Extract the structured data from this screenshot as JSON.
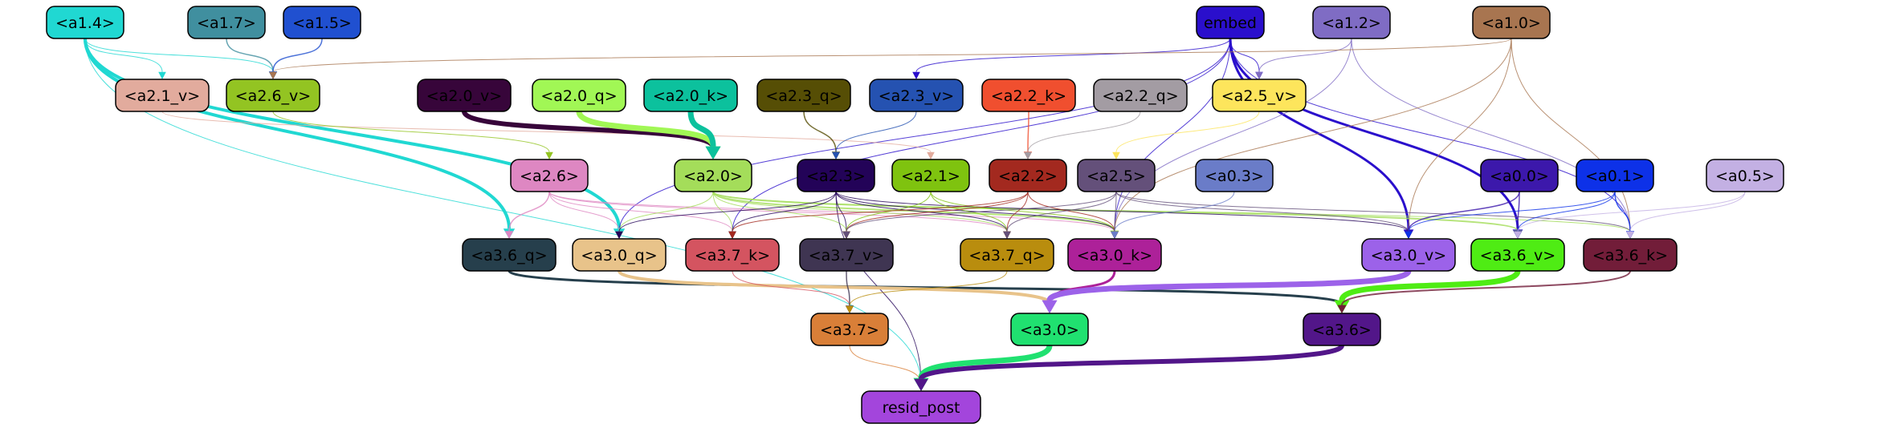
{
  "nodes": [
    {
      "id": "embed",
      "label": "embed",
      "fill": "#2a0fcc",
      "text": "#000000"
    },
    {
      "id": "a1.4",
      "label": "<a1.4>",
      "fill": "#20d8d2",
      "text": "#000000"
    },
    {
      "id": "a1.7",
      "label": "<a1.7>",
      "fill": "#408f9f",
      "text": "#000000"
    },
    {
      "id": "a1.5",
      "label": "<a1.5>",
      "fill": "#2050d0",
      "text": "#000000"
    },
    {
      "id": "a1.2",
      "label": "<a1.2>",
      "fill": "#7f6cc4",
      "text": "#000000"
    },
    {
      "id": "a1.0",
      "label": "<a1.0>",
      "fill": "#a87550",
      "text": "#000000"
    },
    {
      "id": "a2.1_v",
      "label": "<a2.1_v>",
      "fill": "#e2ab9d",
      "text": "#000000"
    },
    {
      "id": "a2.6_v",
      "label": "<a2.6_v>",
      "fill": "#93c422",
      "text": "#000000"
    },
    {
      "id": "a2.0_v",
      "label": "<a2.0_v>",
      "fill": "#37053a",
      "text": "#000000"
    },
    {
      "id": "a2.0_q",
      "label": "<a2.0_q>",
      "fill": "#a1f755",
      "text": "#000000"
    },
    {
      "id": "a2.0_k",
      "label": "<a2.0_k>",
      "fill": "#0cc19d",
      "text": "#000000"
    },
    {
      "id": "a2.3_q",
      "label": "<a2.3_q>",
      "fill": "#564e05",
      "text": "#000000"
    },
    {
      "id": "a2.3_v",
      "label": "<a2.3_v>",
      "fill": "#2552b1",
      "text": "#000000"
    },
    {
      "id": "a2.2_k",
      "label": "<a2.2_k>",
      "fill": "#f04f2f",
      "text": "#000000"
    },
    {
      "id": "a2.2_q",
      "label": "<a2.2_q>",
      "fill": "#a39ca3",
      "text": "#000000"
    },
    {
      "id": "a2.5_v",
      "label": "<a2.5_v>",
      "fill": "#fde55c",
      "text": "#000000"
    },
    {
      "id": "a2.6",
      "label": "<a2.6>",
      "fill": "#de87c2",
      "text": "#000000"
    },
    {
      "id": "a2.0",
      "label": "<a2.0>",
      "fill": "#a4dd5a",
      "text": "#000000"
    },
    {
      "id": "a2.3",
      "label": "<a2.3>",
      "fill": "#230358",
      "text": "#000000"
    },
    {
      "id": "a2.1",
      "label": "<a2.1>",
      "fill": "#7fc30f",
      "text": "#000000"
    },
    {
      "id": "a2.2",
      "label": "<a2.2>",
      "fill": "#a3291f",
      "text": "#000000"
    },
    {
      "id": "a2.5",
      "label": "<a2.5>",
      "fill": "#64507a",
      "text": "#000000"
    },
    {
      "id": "a0.3",
      "label": "<a0.3>",
      "fill": "#6a7cc8",
      "text": "#000000"
    },
    {
      "id": "a0.0",
      "label": "<a0.0>",
      "fill": "#3c18ab",
      "text": "#000000"
    },
    {
      "id": "a0.1",
      "label": "<a0.1>",
      "fill": "#0d31e8",
      "text": "#000000"
    },
    {
      "id": "a0.5",
      "label": "<a0.5>",
      "fill": "#c3b0e3",
      "text": "#000000"
    },
    {
      "id": "a3.6_q",
      "label": "<a3.6_q>",
      "fill": "#263f4c",
      "text": "#000000"
    },
    {
      "id": "a3.0_q",
      "label": "<a3.0_q>",
      "fill": "#e8c38a",
      "text": "#000000"
    },
    {
      "id": "a3.7_k",
      "label": "<a3.7_k>",
      "fill": "#d45460",
      "text": "#000000"
    },
    {
      "id": "a3.7_v",
      "label": "<a3.7_v>",
      "fill": "#3f3552",
      "text": "#000000"
    },
    {
      "id": "a3.7_q",
      "label": "<a3.7_q>",
      "fill": "#b98d0e",
      "text": "#000000"
    },
    {
      "id": "a3.0_k",
      "label": "<a3.0_k>",
      "fill": "#ad2199",
      "text": "#000000"
    },
    {
      "id": "a3.0_v",
      "label": "<a3.0_v>",
      "fill": "#9c62e9",
      "text": "#000000"
    },
    {
      "id": "a3.6_v",
      "label": "<a3.6_v>",
      "fill": "#4fec14",
      "text": "#000000"
    },
    {
      "id": "a3.6_k",
      "label": "<a3.6_k>",
      "fill": "#721d39",
      "text": "#000000"
    },
    {
      "id": "a3.7",
      "label": "<a3.7>",
      "fill": "#d97f38",
      "text": "#000000"
    },
    {
      "id": "a3.0",
      "label": "<a3.0>",
      "fill": "#20e170",
      "text": "#000000"
    },
    {
      "id": "a3.6",
      "label": "<a3.6>",
      "fill": "#521689",
      "text": "#000000"
    },
    {
      "id": "resid_post",
      "label": "resid_post",
      "fill": "#a345dc",
      "text": "#000000"
    }
  ],
  "edges": [
    {
      "from": "a1.4",
      "to": "a2.1_v",
      "color": "#20d8d2",
      "weight": 1
    },
    {
      "from": "a1.4",
      "to": "a2.6_v",
      "color": "#20d8d2",
      "weight": 1
    },
    {
      "from": "a1.4",
      "to": "a3.6_q",
      "color": "#20d8d2",
      "weight": 4
    },
    {
      "from": "a1.4",
      "to": "a3.0_q",
      "color": "#20d8d2",
      "weight": 4
    },
    {
      "from": "a1.4",
      "to": "resid_post",
      "color": "#20d8d2",
      "weight": 1
    },
    {
      "from": "a1.7",
      "to": "a2.6_v",
      "color": "#408f9f",
      "weight": 1.5
    },
    {
      "from": "a1.5",
      "to": "a2.6_v",
      "color": "#2050d0",
      "weight": 1.5
    },
    {
      "from": "embed",
      "to": "a2.3_v",
      "color": "#2a0fcc",
      "weight": 1
    },
    {
      "from": "embed",
      "to": "a2.5_v",
      "color": "#2a0fcc",
      "weight": 1
    },
    {
      "from": "embed",
      "to": "a3.0_v",
      "color": "#2a0fcc",
      "weight": 3
    },
    {
      "from": "embed",
      "to": "a3.6_v",
      "color": "#2a0fcc",
      "weight": 3
    },
    {
      "from": "embed",
      "to": "a3.6_k",
      "color": "#2a0fcc",
      "weight": 1
    },
    {
      "from": "embed",
      "to": "a3.0_k",
      "color": "#2a0fcc",
      "weight": 1
    },
    {
      "from": "embed",
      "to": "a3.0_q",
      "color": "#2a0fcc",
      "weight": 1
    },
    {
      "from": "embed",
      "to": "a3.7_k",
      "color": "#2a0fcc",
      "weight": 1
    },
    {
      "from": "a1.2",
      "to": "a2.5_v",
      "color": "#7f6cc4",
      "weight": 1
    },
    {
      "from": "a1.2",
      "to": "a3.6_k",
      "color": "#7f6cc4",
      "weight": 1
    },
    {
      "from": "a1.2",
      "to": "a3.0_k",
      "color": "#7f6cc4",
      "weight": 1
    },
    {
      "from": "a1.0",
      "to": "a2.6_v",
      "color": "#a87550",
      "weight": 1
    },
    {
      "from": "a1.0",
      "to": "a3.0_v",
      "color": "#a87550",
      "weight": 1
    },
    {
      "from": "a1.0",
      "to": "a3.0_k",
      "color": "#a87550",
      "weight": 1
    },
    {
      "from": "a1.0",
      "to": "a3.6_k",
      "color": "#a87550",
      "weight": 1
    },
    {
      "from": "a2.1_v",
      "to": "a2.1",
      "color": "#e2ab9d",
      "weight": 1
    },
    {
      "from": "a2.6_v",
      "to": "a2.6",
      "color": "#93c422",
      "weight": 1
    },
    {
      "from": "a2.0_v",
      "to": "a2.0",
      "color": "#37053a",
      "weight": 6
    },
    {
      "from": "a2.0_q",
      "to": "a2.0",
      "color": "#a1f755",
      "weight": 7
    },
    {
      "from": "a2.0_k",
      "to": "a2.0",
      "color": "#0cc19d",
      "weight": 7
    },
    {
      "from": "a2.3_q",
      "to": "a2.3",
      "color": "#564e05",
      "weight": 1.5
    },
    {
      "from": "a2.3_v",
      "to": "a2.3",
      "color": "#2552b1",
      "weight": 1
    },
    {
      "from": "a2.2_k",
      "to": "a2.2",
      "color": "#f04f2f",
      "weight": 1.5
    },
    {
      "from": "a2.2_q",
      "to": "a2.2",
      "color": "#a39ca3",
      "weight": 1
    },
    {
      "from": "a2.5_v",
      "to": "a2.5",
      "color": "#fde55c",
      "weight": 1
    },
    {
      "from": "a2.6",
      "to": "a3.6_q",
      "color": "#de87c2",
      "weight": 1.5
    },
    {
      "from": "a2.6",
      "to": "a3.0_q",
      "color": "#de87c2",
      "weight": 1
    },
    {
      "from": "a2.6",
      "to": "a3.7_k",
      "color": "#de87c2",
      "weight": 1
    },
    {
      "from": "a2.6",
      "to": "a3.7_q",
      "color": "#de87c2",
      "weight": 1
    },
    {
      "from": "a2.6",
      "to": "a3.0_k",
      "color": "#de87c2",
      "weight": 1
    },
    {
      "from": "a2.0",
      "to": "a3.0_q",
      "color": "#a4dd5a",
      "weight": 1
    },
    {
      "from": "a2.0",
      "to": "a3.7_k",
      "color": "#a4dd5a",
      "weight": 1
    },
    {
      "from": "a2.0",
      "to": "a3.7_v",
      "color": "#a4dd5a",
      "weight": 1
    },
    {
      "from": "a2.0",
      "to": "a3.7_q",
      "color": "#a4dd5a",
      "weight": 1
    },
    {
      "from": "a2.0",
      "to": "a3.0_k",
      "color": "#a4dd5a",
      "weight": 2
    },
    {
      "from": "a2.0",
      "to": "a3.6_v",
      "color": "#a4dd5a",
      "weight": 2
    },
    {
      "from": "a2.0",
      "to": "a3.6_k",
      "color": "#a4dd5a",
      "weight": 1
    },
    {
      "from": "a2.3",
      "to": "a3.0_q",
      "color": "#230358",
      "weight": 1
    },
    {
      "from": "a2.3",
      "to": "a3.7_k",
      "color": "#230358",
      "weight": 1
    },
    {
      "from": "a2.3",
      "to": "a3.7_v",
      "color": "#230358",
      "weight": 1
    },
    {
      "from": "a2.3",
      "to": "a3.7_q",
      "color": "#230358",
      "weight": 1
    },
    {
      "from": "a2.3",
      "to": "a3.0_k",
      "color": "#230358",
      "weight": 1
    },
    {
      "from": "a2.3",
      "to": "a3.0_v",
      "color": "#230358",
      "weight": 1
    },
    {
      "from": "a2.3",
      "to": "resid_post",
      "color": "#230358",
      "weight": 1
    },
    {
      "from": "a2.1",
      "to": "a3.7_v",
      "color": "#7fc30f",
      "weight": 1
    },
    {
      "from": "a2.1",
      "to": "a3.7_q",
      "color": "#7fc30f",
      "weight": 1
    },
    {
      "from": "a2.1",
      "to": "a3.0_k",
      "color": "#7fc30f",
      "weight": 1
    },
    {
      "from": "a2.2",
      "to": "a3.7_k",
      "color": "#a3291f",
      "weight": 1
    },
    {
      "from": "a2.2",
      "to": "a3.7_v",
      "color": "#a3291f",
      "weight": 1
    },
    {
      "from": "a2.2",
      "to": "a3.7_q",
      "color": "#a3291f",
      "weight": 1
    },
    {
      "from": "a2.2",
      "to": "a3.0_k",
      "color": "#a3291f",
      "weight": 1
    },
    {
      "from": "a2.5",
      "to": "a3.7_v",
      "color": "#64507a",
      "weight": 1
    },
    {
      "from": "a2.5",
      "to": "a3.7_q",
      "color": "#64507a",
      "weight": 1
    },
    {
      "from": "a2.5",
      "to": "a3.0_k",
      "color": "#64507a",
      "weight": 1
    },
    {
      "from": "a2.5",
      "to": "a3.0_v",
      "color": "#64507a",
      "weight": 1
    },
    {
      "from": "a2.5",
      "to": "a3.6_k",
      "color": "#64507a",
      "weight": 1
    },
    {
      "from": "a0.3",
      "to": "a3.0_k",
      "color": "#6a7cc8",
      "weight": 1
    },
    {
      "from": "a0.0",
      "to": "a3.0_v",
      "color": "#3c18ab",
      "weight": 1.5
    },
    {
      "from": "a0.0",
      "to": "a3.6_v",
      "color": "#3c18ab",
      "weight": 1.5
    },
    {
      "from": "a0.1",
      "to": "a3.0_v",
      "color": "#0d31e8",
      "weight": 1
    },
    {
      "from": "a0.1",
      "to": "a3.6_v",
      "color": "#0d31e8",
      "weight": 1
    },
    {
      "from": "a0.1",
      "to": "a3.6_k",
      "color": "#0d31e8",
      "weight": 1.5
    },
    {
      "from": "a0.5",
      "to": "a3.6_v",
      "color": "#c3b0e3",
      "weight": 1
    },
    {
      "from": "a0.5",
      "to": "a3.6_k",
      "color": "#c3b0e3",
      "weight": 1
    },
    {
      "from": "a3.6_q",
      "to": "a3.6",
      "color": "#263f4c",
      "weight": 3
    },
    {
      "from": "a3.0_q",
      "to": "a3.0",
      "color": "#e8c38a",
      "weight": 4
    },
    {
      "from": "a3.7_k",
      "to": "a3.7",
      "color": "#d45460",
      "weight": 1
    },
    {
      "from": "a3.7_v",
      "to": "a3.7",
      "color": "#3f3552",
      "weight": 1.5
    },
    {
      "from": "a3.7_q",
      "to": "a3.7",
      "color": "#b98d0e",
      "weight": 1
    },
    {
      "from": "a3.0_k",
      "to": "a3.0",
      "color": "#ad2199",
      "weight": 3
    },
    {
      "from": "a3.0_v",
      "to": "a3.0",
      "color": "#9c62e9",
      "weight": 7
    },
    {
      "from": "a3.6_v",
      "to": "a3.6",
      "color": "#4fec14",
      "weight": 7
    },
    {
      "from": "a3.6_k",
      "to": "a3.6",
      "color": "#721d39",
      "weight": 2
    },
    {
      "from": "a3.7",
      "to": "resid_post",
      "color": "#d97f38",
      "weight": 1
    },
    {
      "from": "a3.0",
      "to": "resid_post",
      "color": "#20e170",
      "weight": 7
    },
    {
      "from": "a3.6",
      "to": "resid_post",
      "color": "#521689",
      "weight": 6
    }
  ]
}
